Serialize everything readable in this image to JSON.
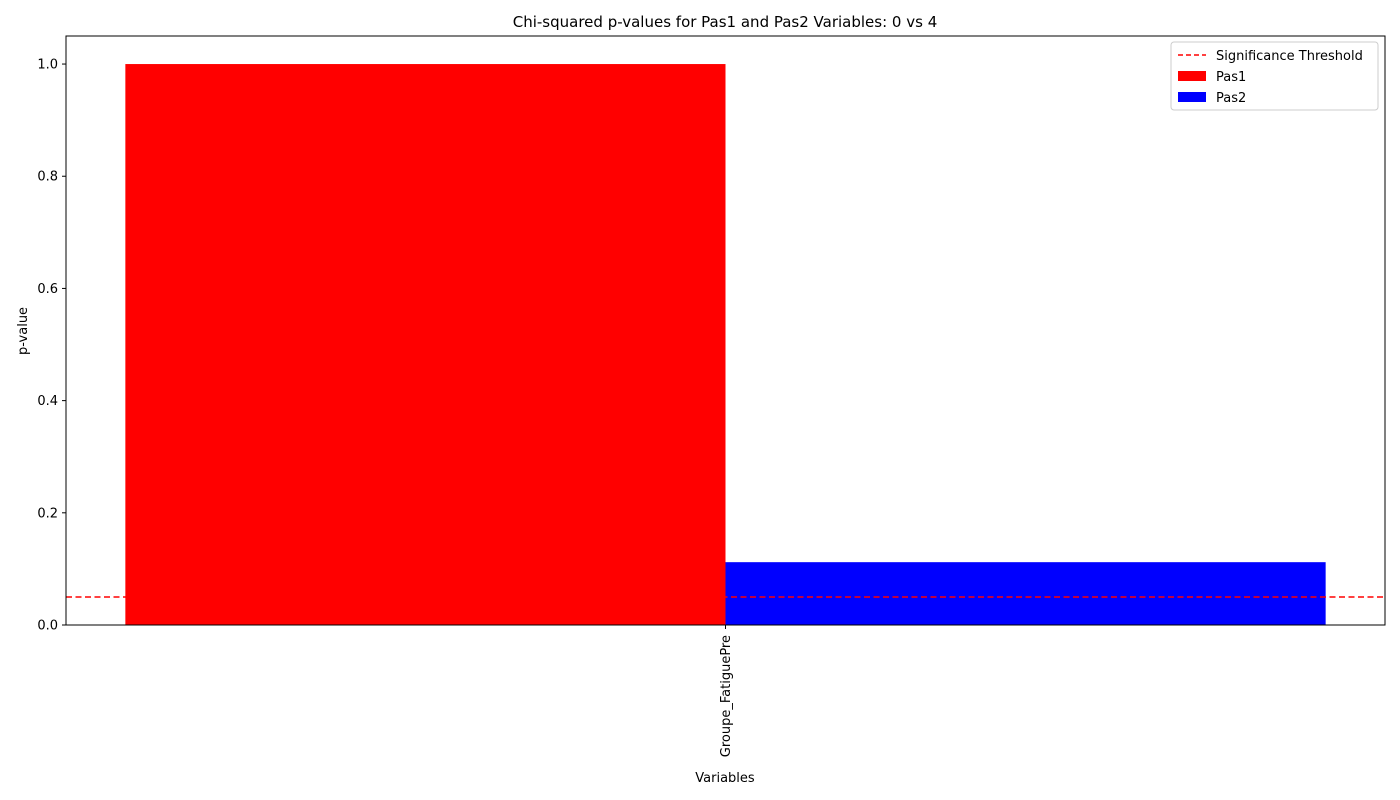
{
  "chart_data": {
    "type": "bar",
    "title": "Chi-squared p-values for Pas1 and Pas2 Variables: 0 vs 4",
    "xlabel": "Variables",
    "ylabel": "p-value",
    "categories": [
      "Groupe_FatiguePre"
    ],
    "series": [
      {
        "name": "Pas1",
        "values": [
          1.0
        ],
        "color": "#ff0000"
      },
      {
        "name": "Pas2",
        "values": [
          0.112
        ],
        "color": "#0000ff"
      }
    ],
    "ylim": [
      0,
      1.05
    ],
    "yticks": [
      0.0,
      0.2,
      0.4,
      0.6,
      0.8,
      1.0
    ],
    "ytick_labels": [
      "0.0",
      "0.2",
      "0.4",
      "0.6",
      "0.8",
      "1.0"
    ],
    "threshold": {
      "name": "Significance Threshold",
      "value": 0.05,
      "color": "#ff0000",
      "style": "dashed"
    },
    "legend_position": "top-right",
    "grid": false,
    "x_tick_rotation": "vertical"
  }
}
